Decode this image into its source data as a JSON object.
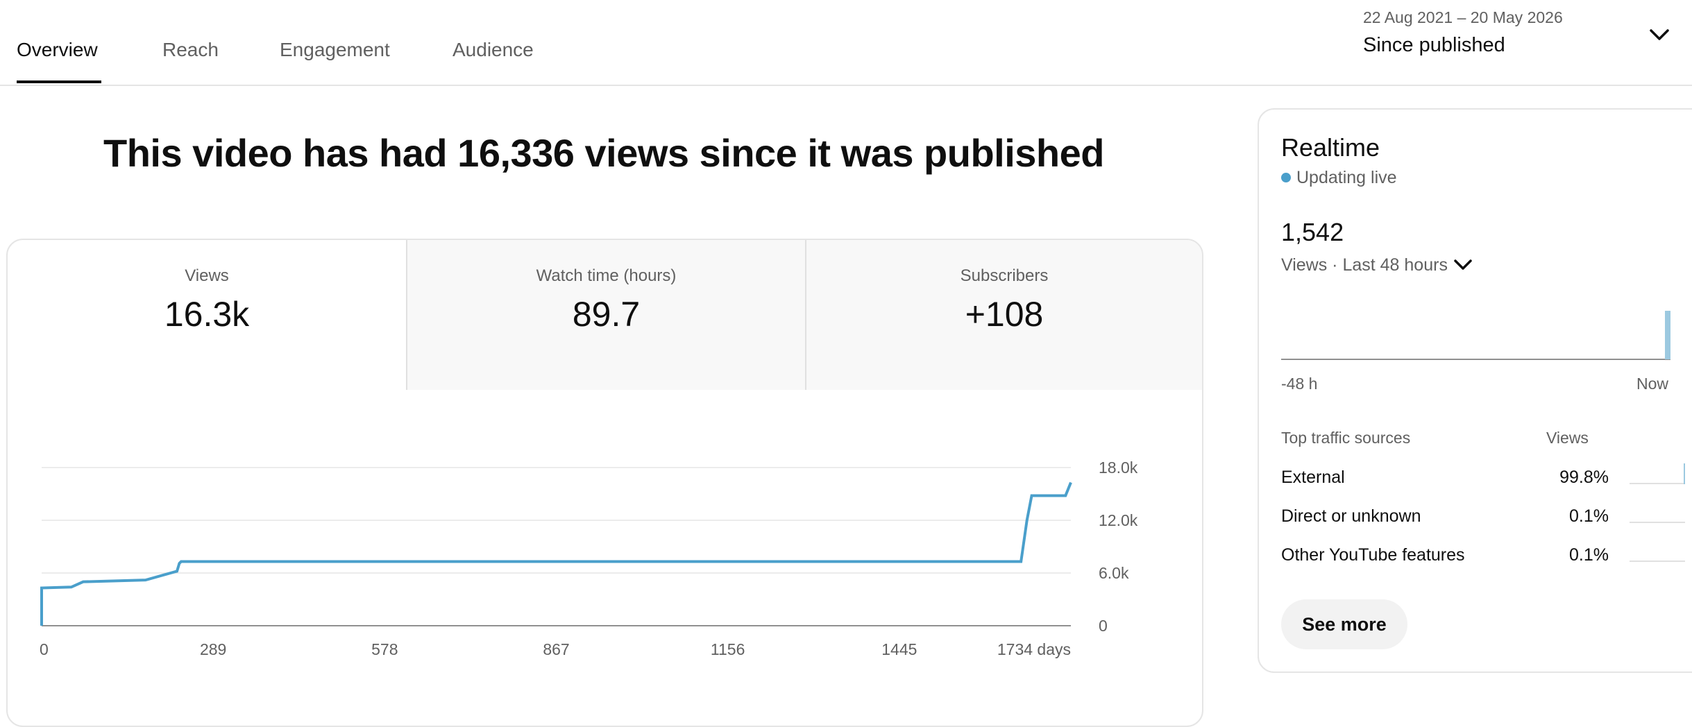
{
  "tabs": [
    {
      "label": "Overview",
      "active": true
    },
    {
      "label": "Reach",
      "active": false
    },
    {
      "label": "Engagement",
      "active": false
    },
    {
      "label": "Audience",
      "active": false
    }
  ],
  "date_range": {
    "range": "22 Aug 2021 – 20 May 2026",
    "label": "Since published"
  },
  "headline": "This video has had 16,336 views since it was published",
  "metrics": [
    {
      "label": "Views",
      "value": "16.3k",
      "selected": true
    },
    {
      "label": "Watch time (hours)",
      "value": "89.7",
      "selected": false
    },
    {
      "label": "Subscribers",
      "value": "+108",
      "selected": false
    }
  ],
  "chart_data": {
    "type": "line",
    "x_label": "days",
    "x_ticks": [
      "0",
      "289",
      "578",
      "867",
      "1156",
      "1445",
      "1734 days"
    ],
    "y_ticks": [
      "0",
      "6.0k",
      "12.0k",
      "18.0k"
    ],
    "xlim": [
      0,
      1734
    ],
    "ylim": [
      0,
      18000
    ],
    "grid": true,
    "color": "#4a9fcb",
    "series": [
      {
        "x": [
          0,
          0,
          50,
          70,
          175,
          228,
          232,
          235,
          1650,
          1660,
          1668,
          1725,
          1734
        ],
        "y": [
          0,
          4300,
          4400,
          5000,
          5200,
          6200,
          7100,
          7300,
          7300,
          12000,
          14800,
          14800,
          16300
        ]
      }
    ]
  },
  "realtime": {
    "title": "Realtime",
    "live_label": "Updating live",
    "live_color": "#4a9fcb",
    "count": "1,542",
    "sub_label": "Views · Last 48 hours",
    "axis_start": "-48 h",
    "axis_end": "Now",
    "bars": [
      {
        "position_hours": 0,
        "views": 1542
      }
    ],
    "traffic_header": {
      "source": "Top traffic sources",
      "views": "Views"
    },
    "traffic": [
      {
        "name": "External",
        "pct": "99.8%",
        "share": 0.998
      },
      {
        "name": "Direct or unknown",
        "pct": "0.1%",
        "share": 0.001
      },
      {
        "name": "Other YouTube features",
        "pct": "0.1%",
        "share": 0.001
      }
    ],
    "see_more": "See more"
  }
}
